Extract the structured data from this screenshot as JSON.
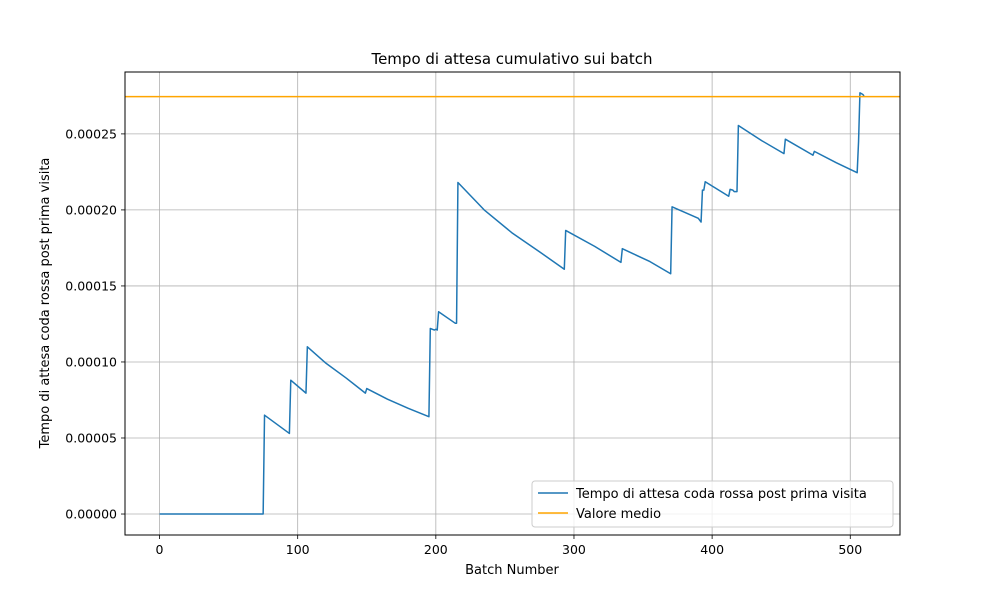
{
  "chart_data": {
    "type": "line",
    "title": "Tempo di attesa cumulativo sui batch",
    "xlabel": "Batch Number",
    "ylabel": "Tempo di attesa coda rossa post prima visita",
    "xlim": [
      -25,
      536
    ],
    "ylim": [
      -1.38e-05,
      0.0002907
    ],
    "xticks": [
      0,
      100,
      200,
      300,
      400,
      500
    ],
    "yticks": [
      0,
      5e-05,
      0.0001,
      0.00015,
      0.0002,
      0.00025
    ],
    "ytick_labels": [
      "0.00000",
      "0.00005",
      "0.00010",
      "0.00015",
      "0.00020",
      "0.00025"
    ],
    "grid": true,
    "legend": {
      "placement": "lower-right"
    },
    "series": [
      {
        "name": "Tempo di attesa coda rossa post prima visita",
        "color": "#1f77b4",
        "type": "line",
        "x": [
          0,
          75,
          76,
          85,
          94,
          95,
          106,
          107,
          120,
          135,
          149,
          150,
          165,
          180,
          195,
          196,
          199,
          200,
          201,
          202,
          214,
          215,
          216,
          235,
          255,
          275,
          293,
          294,
          315,
          334,
          335,
          355,
          370,
          371,
          390,
          392,
          393,
          394,
          395,
          412,
          413,
          415,
          416,
          418,
          419,
          436,
          452,
          453,
          472,
          473,
          474,
          490,
          505,
          506,
          507,
          509,
          510
        ],
        "y": [
          0,
          0,
          6.5e-05,
          5.9e-05,
          5.3e-05,
          8.8e-05,
          7.95e-05,
          0.00011,
          9.95e-05,
          8.95e-05,
          7.95e-05,
          8.25e-05,
          7.55e-05,
          6.95e-05,
          6.4e-05,
          0.000122,
          0.000121,
          0.0001215,
          0.000121,
          0.000133,
          0.0001255,
          0.0001255,
          0.000218,
          0.0002,
          0.000185,
          0.0001725,
          0.000161,
          0.0001865,
          0.000176,
          0.0001655,
          0.0001745,
          0.000166,
          0.000158,
          0.000202,
          0.0001945,
          0.000192,
          0.000213,
          0.000213,
          0.0002185,
          0.000209,
          0.0002135,
          0.000213,
          0.000212,
          0.000212,
          0.0002555,
          0.0002455,
          0.000237,
          0.0002465,
          0.0002365,
          0.000236,
          0.0002385,
          0.000231,
          0.0002245,
          0.000245,
          0.000277,
          0.000276,
          0.000275
        ]
      },
      {
        "name": "Valore medio",
        "color": "#ffa500",
        "type": "hline",
        "y": 0.0002745
      }
    ]
  }
}
